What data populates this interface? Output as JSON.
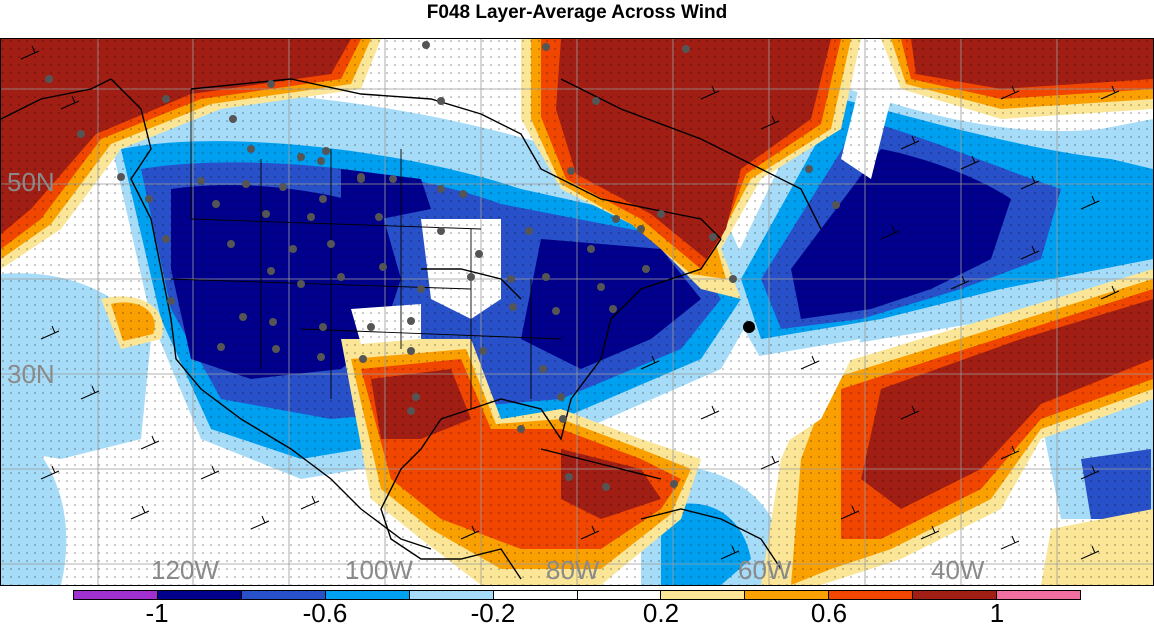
{
  "title": "F048 Layer-Average Across Wind",
  "lat_labels": [
    "50N",
    "30N"
  ],
  "lon_labels": [
    "120W",
    "100W",
    "80W",
    "60W",
    "40W"
  ],
  "colorbar": {
    "colors": [
      "#a030d0",
      "#00008c",
      "#2850c8",
      "#00a0f0",
      "#a6dcf8",
      "#ffffff",
      "#ffffff",
      "#fae696",
      "#faa000",
      "#f04600",
      "#a01e14",
      "#f06ea0"
    ],
    "tick_labels": [
      "-1",
      "-0.6",
      "-0.2",
      "0.2",
      "0.6",
      "1"
    ]
  },
  "palette": {
    "dark_red": "#a01e14",
    "orange_red": "#f04600",
    "orange": "#faa000",
    "light_yellow": "#fae696",
    "light_blue": "#a6dcf8",
    "sky_blue": "#00a0f0",
    "medium_blue": "#2850c8",
    "navy": "#00008c"
  }
}
